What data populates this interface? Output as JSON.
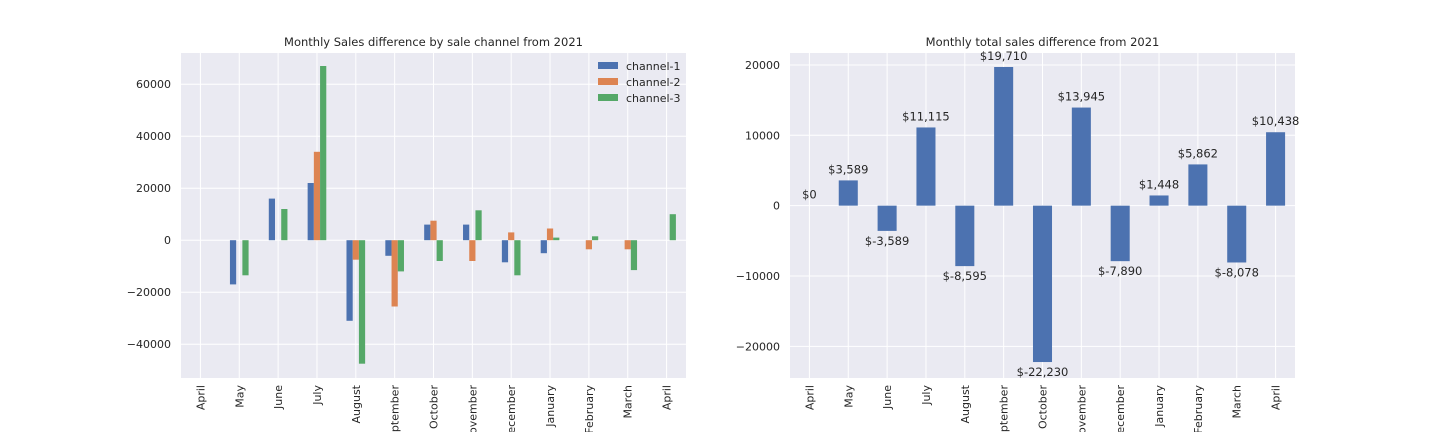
{
  "chart_data": [
    {
      "type": "bar",
      "title": "Monthly Sales difference by sale channel from 2021",
      "xlabel": "",
      "ylabel": "",
      "categories": [
        "April",
        "May",
        "June",
        "July",
        "August",
        "September",
        "October",
        "November",
        "December",
        "January",
        "February",
        "March",
        "April"
      ],
      "ylim": [
        -53000,
        72000
      ],
      "yticks": [
        -40000,
        -20000,
        0,
        20000,
        40000,
        60000
      ],
      "grid": true,
      "legend": "top-right",
      "series": [
        {
          "name": "channel-1",
          "color": "#4c72b0",
          "values": [
            0,
            -17000,
            16000,
            22000,
            -31000,
            -6000,
            6000,
            6000,
            -8500,
            -5000,
            0,
            0,
            0
          ]
        },
        {
          "name": "channel-2",
          "color": "#dd8452",
          "values": [
            0,
            0,
            0,
            34000,
            -7500,
            -25500,
            7500,
            -8000,
            3000,
            4500,
            -3500,
            -3500,
            0
          ]
        },
        {
          "name": "channel-3",
          "color": "#55a868",
          "values": [
            0,
            -13500,
            12000,
            67000,
            -47500,
            -12000,
            -8000,
            11500,
            -13500,
            1000,
            1500,
            -11500,
            10000
          ]
        }
      ]
    },
    {
      "type": "bar",
      "title": "Monthly total sales difference from 2021",
      "xlabel": "",
      "ylabel": "",
      "categories": [
        "April",
        "May",
        "June",
        "July",
        "August",
        "September",
        "October",
        "November",
        "December",
        "January",
        "February",
        "March",
        "April"
      ],
      "ylim": [
        -24500,
        21700
      ],
      "yticks": [
        -20000,
        -10000,
        0,
        10000,
        20000
      ],
      "grid": true,
      "color": "#4c72b0",
      "values": [
        0,
        3589,
        -3589,
        11115,
        -8595,
        19710,
        -22230,
        13945,
        -7890,
        1448,
        5862,
        -8078,
        10438
      ],
      "data_labels": [
        "$0",
        "$3,589",
        "$-3,589",
        "$11,115",
        "$-8,595",
        "$19,710",
        "$-22,230",
        "$13,945",
        "$-7,890",
        "$1,448",
        "$5,862",
        "$-8,078",
        "$10,438"
      ]
    }
  ]
}
